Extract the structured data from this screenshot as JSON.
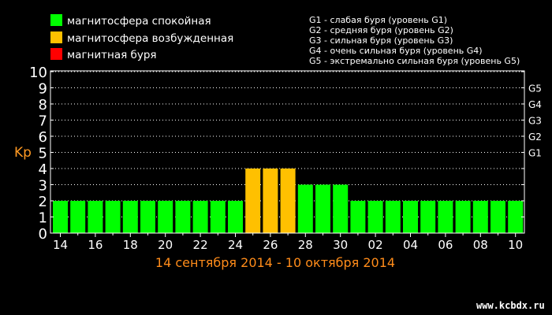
{
  "legend": {
    "items": [
      {
        "label": "магнитосфера спокойная",
        "color": "#00ff00"
      },
      {
        "label": "магнитосфера возбужденная",
        "color": "#ffc000"
      },
      {
        "label": "магнитная буря",
        "color": "#ff0000"
      }
    ],
    "storm_levels": [
      "G1 - слабая буря (уровень G1)",
      "G2 - средняя буря (уровень G2)",
      "G3 - сильная буря (уровень G3)",
      "G4 - очень сильная буря (уровень G4)",
      "G5 - экстремально сильная буря (уровень G5)"
    ]
  },
  "chart_data": {
    "type": "bar",
    "ylabel": "Kp",
    "xlabel": "14 сентября 2014 - 10 октября 2014",
    "ylim": [
      0,
      10
    ],
    "yticks": [
      0,
      1,
      2,
      3,
      4,
      5,
      6,
      7,
      8,
      9,
      10
    ],
    "right_ticks": [
      {
        "label": "G1",
        "value": 5
      },
      {
        "label": "G2",
        "value": 6
      },
      {
        "label": "G3",
        "value": 7
      },
      {
        "label": "G4",
        "value": 8
      },
      {
        "label": "G5",
        "value": 9
      }
    ],
    "grid": true,
    "categories": [
      "14",
      "15",
      "16",
      "17",
      "18",
      "19",
      "20",
      "21",
      "22",
      "23",
      "24",
      "25",
      "26",
      "27",
      "28",
      "29",
      "30",
      "01",
      "02",
      "03",
      "04",
      "05",
      "06",
      "07",
      "08",
      "09",
      "10"
    ],
    "tick_labels": [
      "14",
      "16",
      "18",
      "20",
      "22",
      "24",
      "26",
      "28",
      "30",
      "02",
      "04",
      "06",
      "08",
      "10"
    ],
    "values": [
      2,
      2,
      2,
      2,
      2,
      2,
      2,
      2,
      2,
      2,
      2,
      4,
      4,
      4,
      3,
      3,
      3,
      2,
      2,
      2,
      2,
      2,
      2,
      2,
      2,
      2,
      2
    ],
    "colors": {
      "quiet": "#00ff00",
      "active": "#ffc000",
      "storm": "#ff0000"
    }
  },
  "footer": {
    "site": "www.kcbdx.ru"
  }
}
